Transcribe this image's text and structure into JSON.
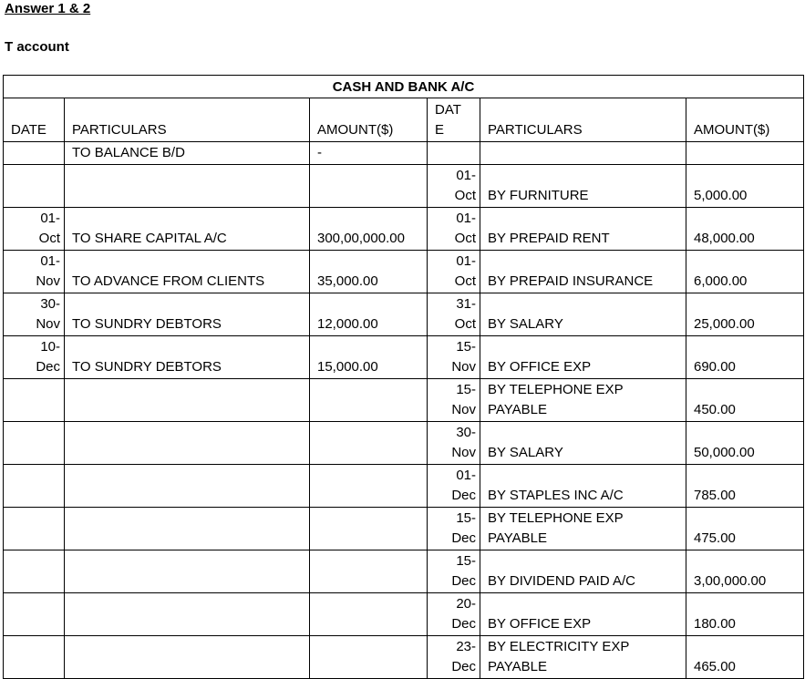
{
  "header": {
    "title": "Answer 1 & 2",
    "subtitle": "T account"
  },
  "table": {
    "title": "CASH AND BANK A/C",
    "columns": [
      "DATE",
      "PARTICULARS",
      "AMOUNT($)",
      "DATE",
      "PARTICULARS",
      "AMOUNT($)"
    ],
    "rows": [
      [
        null,
        "TO BALANCE B/D",
        "-",
        null,
        null,
        null
      ],
      [
        null,
        null,
        null,
        "01-Oct",
        "BY FURNITURE",
        "5,000.00"
      ],
      [
        "01-Oct",
        "TO SHARE CAPITAL A/C",
        "300,00,000.00",
        "01-Oct",
        "BY PREPAID RENT",
        "48,000.00"
      ],
      [
        "01-Nov",
        "TO ADVANCE FROM CLIENTS",
        "35,000.00",
        "01-Oct",
        "BY PREPAID INSURANCE",
        "6,000.00"
      ],
      [
        "30-Nov",
        "TO SUNDRY DEBTORS",
        "12,000.00",
        "31-Oct",
        "BY SALARY",
        "25,000.00"
      ],
      [
        "10-Dec",
        "TO SUNDRY DEBTORS",
        "15,000.00",
        "15-Nov",
        "BY OFFICE EXP",
        "690.00"
      ],
      [
        null,
        null,
        null,
        "15-Nov",
        "BY TELEPHONE EXP PAYABLE",
        "450.00"
      ],
      [
        null,
        null,
        null,
        "30-Nov",
        "BY SALARY",
        "50,000.00"
      ],
      [
        null,
        null,
        null,
        "01-Dec",
        "BY STAPLES INC A/C",
        "785.00"
      ],
      [
        null,
        null,
        null,
        "15-Dec",
        "BY TELEPHONE EXP PAYABLE",
        "475.00"
      ],
      [
        null,
        null,
        null,
        "15-Dec",
        "BY DIVIDEND PAID A/C",
        "3,00,000.00"
      ],
      [
        null,
        null,
        null,
        "20-Dec",
        "BY OFFICE EXP",
        "180.00"
      ],
      [
        null,
        null,
        null,
        "23-Dec",
        "BY ELECTRICITY EXP PAYABLE",
        "465.00"
      ]
    ]
  }
}
